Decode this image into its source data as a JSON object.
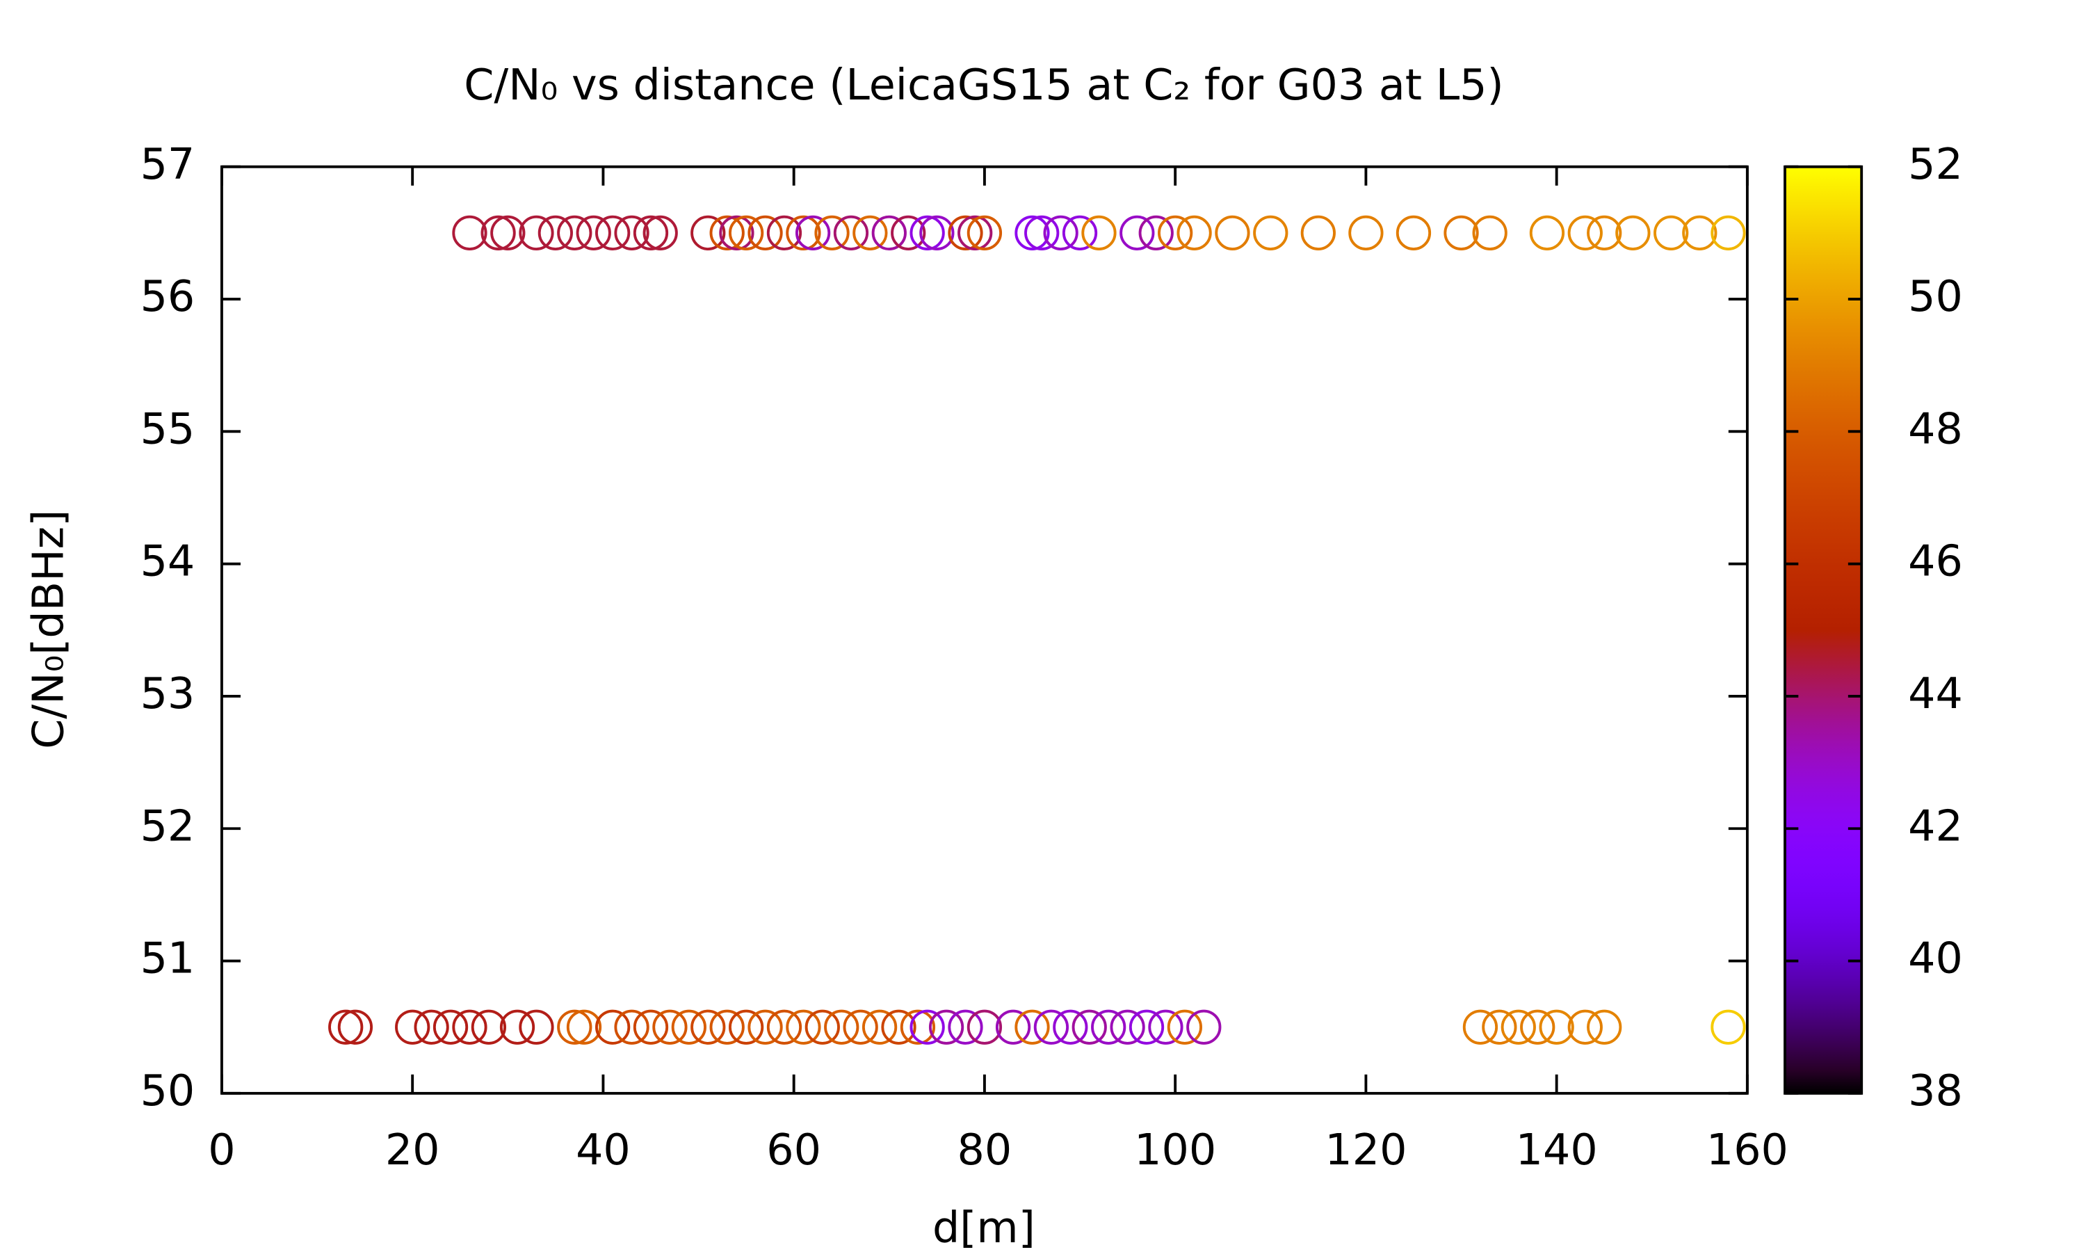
{
  "chart_data": {
    "type": "scatter",
    "title": "C/N₀ vs distance (LeicaGS15 at C₂ for G03 at L5)",
    "x_label": "d[m]",
    "y_label": "C/N₀[dBHz]",
    "xlim": [
      0,
      160
    ],
    "xticks": [
      0,
      20,
      40,
      60,
      80,
      100,
      120,
      140,
      160
    ],
    "ylim": [
      50,
      57
    ],
    "yticks": [
      50,
      51,
      52,
      53,
      54,
      55,
      56,
      57
    ],
    "clim": [
      38,
      52
    ],
    "cticks": [
      38,
      40,
      42,
      44,
      46,
      48,
      50,
      52
    ],
    "palette": "rgbformulae 7,5,15",
    "x": [
      26,
      29,
      30,
      33,
      35,
      37,
      39,
      41,
      43,
      45,
      46,
      51,
      53,
      54,
      55,
      57,
      59,
      61,
      62,
      64,
      66,
      68,
      70,
      72,
      74,
      75,
      78,
      79,
      80,
      85,
      86,
      88,
      90,
      92,
      96,
      98,
      100,
      102,
      106,
      110,
      115,
      120,
      125,
      130,
      133,
      139,
      143,
      145,
      148,
      152,
      155,
      158,
      13,
      14,
      20,
      22,
      24,
      26,
      28,
      31,
      33,
      37,
      38,
      41,
      43,
      45,
      47,
      49,
      51,
      53,
      55,
      57,
      59,
      61,
      63,
      65,
      67,
      69,
      71,
      73,
      74,
      76,
      78,
      80,
      83,
      85,
      87,
      89,
      91,
      93,
      95,
      97,
      99,
      101,
      103,
      132,
      134,
      136,
      138,
      140,
      143,
      145,
      158
    ],
    "y": [
      56.5,
      56.5,
      56.5,
      56.5,
      56.5,
      56.5,
      56.5,
      56.5,
      56.5,
      56.5,
      56.5,
      56.5,
      56.5,
      56.5,
      56.5,
      56.5,
      56.5,
      56.5,
      56.5,
      56.5,
      56.5,
      56.5,
      56.5,
      56.5,
      56.5,
      56.5,
      56.5,
      56.5,
      56.5,
      56.5,
      56.5,
      56.5,
      56.5,
      56.5,
      56.5,
      56.5,
      56.5,
      56.5,
      56.5,
      56.5,
      56.5,
      56.5,
      56.5,
      56.5,
      56.5,
      56.5,
      56.5,
      56.5,
      56.5,
      56.5,
      56.5,
      56.5,
      50.5,
      50.5,
      50.5,
      50.5,
      50.5,
      50.5,
      50.5,
      50.5,
      50.5,
      50.5,
      50.5,
      50.5,
      50.5,
      50.5,
      50.5,
      50.5,
      50.5,
      50.5,
      50.5,
      50.5,
      50.5,
      50.5,
      50.5,
      50.5,
      50.5,
      50.5,
      50.5,
      50.5,
      50.5,
      50.5,
      50.5,
      50.5,
      50.5,
      50.5,
      50.5,
      50.5,
      50.5,
      50.5,
      50.5,
      50.5,
      50.5,
      50.5,
      50.5,
      50.5,
      50.5,
      50.5,
      50.5,
      50.5,
      50.5,
      50.5,
      50.5
    ],
    "c": [
      44.5,
      44.5,
      44.5,
      44.5,
      44.5,
      44.5,
      44.5,
      44.5,
      44.5,
      44.5,
      44.5,
      44.6,
      47.6,
      44,
      48,
      47.5,
      44.4,
      47.8,
      43.2,
      48.2,
      44,
      48.5,
      43.5,
      44.3,
      42.5,
      43,
      47,
      44,
      48,
      42.3,
      42.5,
      43,
      42.6,
      49.2,
      43,
      43.5,
      48.6,
      49,
      49,
      49.2,
      49,
      49.1,
      49,
      48.8,
      49,
      49.5,
      49.4,
      49.3,
      49.5,
      49.6,
      49.6,
      50.5,
      44.8,
      44.8,
      44.8,
      44.8,
      44.8,
      44.8,
      44.8,
      44.8,
      44.8,
      48,
      48.2,
      46.5,
      47.5,
      47,
      47.8,
      48,
      47.2,
      47.8,
      46.8,
      48,
      47.5,
      48.2,
      47,
      48,
      47.8,
      48.3,
      47,
      48,
      42.5,
      43.5,
      43,
      44,
      43.2,
      48.5,
      43,
      42.8,
      43.5,
      43,
      43.2,
      42.6,
      43,
      48.6,
      43.3,
      49,
      49,
      49.2,
      49,
      49.3,
      49.1,
      49.2,
      51
    ]
  }
}
